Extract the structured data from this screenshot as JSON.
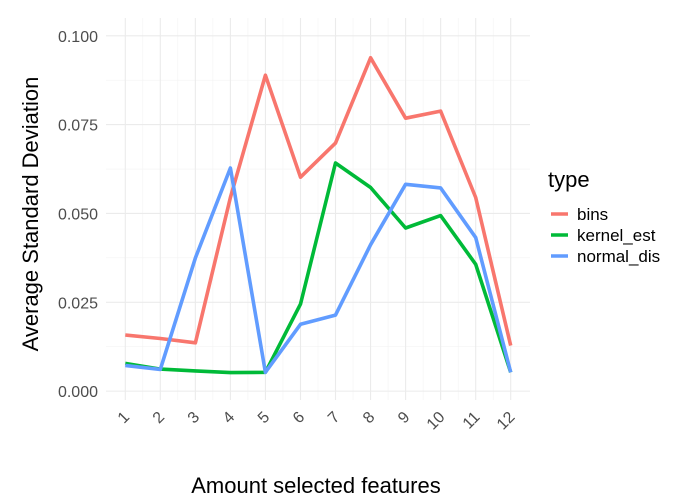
{
  "chart_data": {
    "type": "line",
    "title": "",
    "xlabel": "Amount selected features",
    "ylabel": "Average Standard Deviation",
    "x": [
      1,
      2,
      3,
      4,
      5,
      6,
      7,
      8,
      9,
      10,
      11,
      12
    ],
    "x_tick_labels": [
      "1",
      "2",
      "3",
      "4",
      "5",
      "6",
      "7",
      "8",
      "9",
      "10",
      "11",
      "12"
    ],
    "y_ticks": [
      0.0,
      0.025,
      0.05,
      0.075,
      0.1
    ],
    "y_tick_labels": [
      "0.000",
      "0.025",
      "0.050",
      "0.075",
      "0.100"
    ],
    "xlim": [
      0.45,
      12.55
    ],
    "ylim": [
      -0.0025,
      0.105
    ],
    "grid": true,
    "legend": {
      "title": "type",
      "position": "right"
    },
    "series": [
      {
        "name": "bins",
        "color": "#F8766D",
        "values": [
          0.0158,
          0.0148,
          0.0136,
          0.0545,
          0.0889,
          0.0602,
          0.0698,
          0.0938,
          0.0768,
          0.0788,
          0.0545,
          0.0128
        ]
      },
      {
        "name": "kernel_est",
        "color": "#00BA38",
        "values": [
          0.0078,
          0.0062,
          0.0057,
          0.0052,
          0.0053,
          0.0245,
          0.0642,
          0.0573,
          0.0459,
          0.0494,
          0.0357,
          0.0053
        ]
      },
      {
        "name": "normal_dis",
        "color": "#619CFF",
        "values": [
          0.0072,
          0.0061,
          0.0375,
          0.0628,
          0.0053,
          0.0188,
          0.0214,
          0.0412,
          0.0582,
          0.0572,
          0.0432,
          0.0053
        ]
      }
    ]
  }
}
